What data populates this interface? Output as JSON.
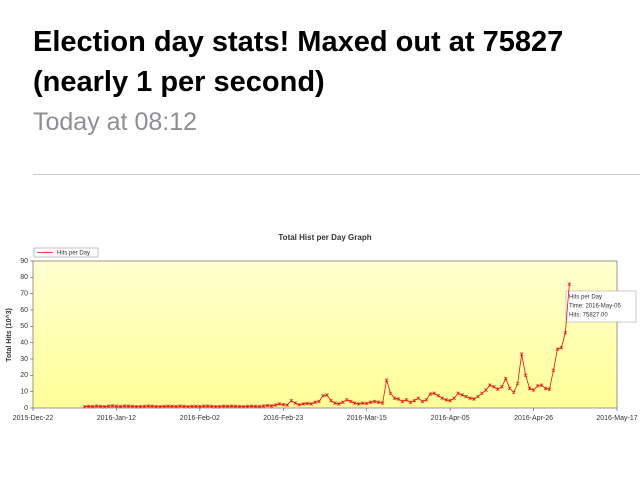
{
  "post": {
    "title": "Election day stats! Maxed out at 75827 (nearly 1 per second)",
    "time": "Today at 08:12"
  },
  "chart_data": {
    "type": "line",
    "title": "Total Hist per Day Graph",
    "y_label": "Total Hits (10^3)",
    "legend": "top-left",
    "grid": false,
    "xlim": [
      "2015-12-22",
      "2016-05-17"
    ],
    "xticks": [
      {
        "value": "2015-12-22",
        "label": "2015-Dec-22"
      },
      {
        "value": "2016-01-12",
        "label": "2016-Jan-12"
      },
      {
        "value": "2016-02-02",
        "label": "2016-Feb-02"
      },
      {
        "value": "2016-02-23",
        "label": "2016-Feb-23"
      },
      {
        "value": "2016-03-15",
        "label": "2016-Mar-15"
      },
      {
        "value": "2016-04-05",
        "label": "2016-Apr-05"
      },
      {
        "value": "2016-04-26",
        "label": "2016-Apr-26"
      },
      {
        "value": "2016-05-17",
        "label": "2016-May-17"
      }
    ],
    "ylim": [
      0,
      90
    ],
    "yticks": [
      0,
      10,
      20,
      30,
      40,
      50,
      60,
      70,
      80,
      90
    ],
    "x": [
      "2016-01-04",
      "2016-01-05",
      "2016-01-06",
      "2016-01-07",
      "2016-01-08",
      "2016-01-09",
      "2016-01-10",
      "2016-01-11",
      "2016-01-12",
      "2016-01-13",
      "2016-01-14",
      "2016-01-15",
      "2016-01-16",
      "2016-01-17",
      "2016-01-18",
      "2016-01-19",
      "2016-01-20",
      "2016-01-21",
      "2016-01-22",
      "2016-01-23",
      "2016-01-24",
      "2016-01-25",
      "2016-01-26",
      "2016-01-27",
      "2016-01-28",
      "2016-01-29",
      "2016-01-30",
      "2016-01-31",
      "2016-02-01",
      "2016-02-02",
      "2016-02-03",
      "2016-02-04",
      "2016-02-05",
      "2016-02-06",
      "2016-02-07",
      "2016-02-08",
      "2016-02-09",
      "2016-02-10",
      "2016-02-11",
      "2016-02-12",
      "2016-02-13",
      "2016-02-14",
      "2016-02-15",
      "2016-02-16",
      "2016-02-17",
      "2016-02-18",
      "2016-02-19",
      "2016-02-20",
      "2016-02-21",
      "2016-02-22",
      "2016-02-23",
      "2016-02-24",
      "2016-02-25",
      "2016-02-26",
      "2016-02-27",
      "2016-02-28",
      "2016-02-29",
      "2016-03-01",
      "2016-03-02",
      "2016-03-03",
      "2016-03-04",
      "2016-03-05",
      "2016-03-06",
      "2016-03-07",
      "2016-03-08",
      "2016-03-09",
      "2016-03-10",
      "2016-03-11",
      "2016-03-12",
      "2016-03-13",
      "2016-03-14",
      "2016-03-15",
      "2016-03-16",
      "2016-03-17",
      "2016-03-18",
      "2016-03-19",
      "2016-03-20",
      "2016-03-21",
      "2016-03-22",
      "2016-03-23",
      "2016-03-24",
      "2016-03-25",
      "2016-03-26",
      "2016-03-27",
      "2016-03-28",
      "2016-03-29",
      "2016-03-30",
      "2016-03-31",
      "2016-04-01",
      "2016-04-02",
      "2016-04-03",
      "2016-04-04",
      "2016-04-05",
      "2016-04-06",
      "2016-04-07",
      "2016-04-08",
      "2016-04-09",
      "2016-04-10",
      "2016-04-11",
      "2016-04-12",
      "2016-04-13",
      "2016-04-14",
      "2016-04-15",
      "2016-04-16",
      "2016-04-17",
      "2016-04-18",
      "2016-04-19",
      "2016-04-20",
      "2016-04-21",
      "2016-04-22",
      "2016-04-23",
      "2016-04-24",
      "2016-04-25",
      "2016-04-26",
      "2016-04-27",
      "2016-04-28",
      "2016-04-29",
      "2016-04-30",
      "2016-05-01",
      "2016-05-02",
      "2016-05-03",
      "2016-05-04",
      "2016-05-05"
    ],
    "series": [
      {
        "name": "Hits per Day",
        "color": "#ee1111",
        "values": [
          0.8,
          1.0,
          0.9,
          1.2,
          1.0,
          0.8,
          1.1,
          1.3,
          1.0,
          0.9,
          1.2,
          1.1,
          1.0,
          0.8,
          0.9,
          1.0,
          1.2,
          1.1,
          0.9,
          0.8,
          1.0,
          1.1,
          1.0,
          0.9,
          1.2,
          1.0,
          0.8,
          1.0,
          1.0,
          0.9,
          1.1,
          1.2,
          1.0,
          0.8,
          0.9,
          1.1,
          1.0,
          1.2,
          1.0,
          0.9,
          0.8,
          1.0,
          1.1,
          1.0,
          0.9,
          1.2,
          1.5,
          1.3,
          1.8,
          2.5,
          2.0,
          1.8,
          4.5,
          3.0,
          2.0,
          2.5,
          2.8,
          2.5,
          3.5,
          4.0,
          7.5,
          8.0,
          4.5,
          3.0,
          2.5,
          3.5,
          5.0,
          4.0,
          3.0,
          2.5,
          3.0,
          2.8,
          3.5,
          4.0,
          3.5,
          3.0,
          17.0,
          9.0,
          6.0,
          5.5,
          4.0,
          5.0,
          3.5,
          4.5,
          6.0,
          4.0,
          5.0,
          8.5,
          9.0,
          7.5,
          6.0,
          5.0,
          4.5,
          6.0,
          9.0,
          8.0,
          7.0,
          6.0,
          5.5,
          7.0,
          9.0,
          11.0,
          14.0,
          13.0,
          11.5,
          13.0,
          18.0,
          12.0,
          9.5,
          15.0,
          33.0,
          20.0,
          12.0,
          11.0,
          13.5,
          14.0,
          12.0,
          11.5,
          23.0,
          36.0,
          37.0,
          46.0,
          75.827
        ]
      }
    ],
    "tooltip": {
      "title": "Hits per Day",
      "time": "Time: 2016-May-05",
      "hits": "Hits: 75827.00"
    }
  }
}
